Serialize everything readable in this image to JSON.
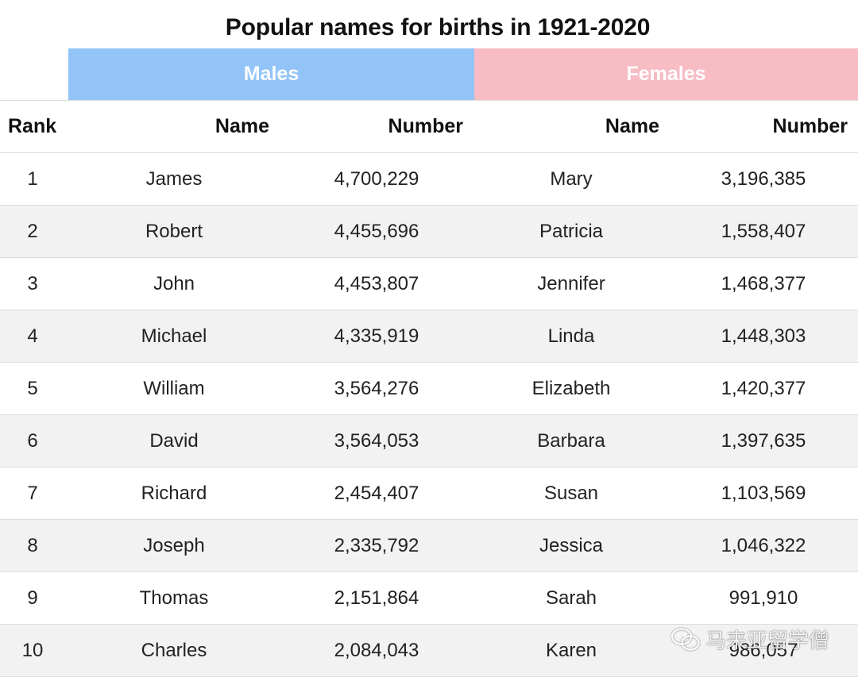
{
  "title": "Popular names for births in 1921-2020",
  "groups": {
    "males": "Males",
    "females": "Females",
    "males_color": "#93c4f7",
    "females_color": "#f7bcc4"
  },
  "headers": {
    "rank": "Rank",
    "male_name": "Name",
    "male_number": "Number",
    "female_name": "Name",
    "female_number": "Number"
  },
  "rows": [
    {
      "rank": "1",
      "male_name": "James",
      "male_number": "4,700,229",
      "female_name": "Mary",
      "female_number": "3,196,385"
    },
    {
      "rank": "2",
      "male_name": "Robert",
      "male_number": "4,455,696",
      "female_name": "Patricia",
      "female_number": "1,558,407"
    },
    {
      "rank": "3",
      "male_name": "John",
      "male_number": "4,453,807",
      "female_name": "Jennifer",
      "female_number": "1,468,377"
    },
    {
      "rank": "4",
      "male_name": "Michael",
      "male_number": "4,335,919",
      "female_name": "Linda",
      "female_number": "1,448,303"
    },
    {
      "rank": "5",
      "male_name": "William",
      "male_number": "3,564,276",
      "female_name": "Elizabeth",
      "female_number": "1,420,377"
    },
    {
      "rank": "6",
      "male_name": "David",
      "male_number": "3,564,053",
      "female_name": "Barbara",
      "female_number": "1,397,635"
    },
    {
      "rank": "7",
      "male_name": "Richard",
      "male_number": "2,454,407",
      "female_name": "Susan",
      "female_number": "1,103,569"
    },
    {
      "rank": "8",
      "male_name": "Joseph",
      "male_number": "2,335,792",
      "female_name": "Jessica",
      "female_number": "1,046,322"
    },
    {
      "rank": "9",
      "male_name": "Thomas",
      "male_number": "2,151,864",
      "female_name": "Sarah",
      "female_number": "991,910"
    },
    {
      "rank": "10",
      "male_name": "Charles",
      "male_number": "2,084,043",
      "female_name": "Karen",
      "female_number": "986,057"
    }
  ],
  "watermark": {
    "icon": "wechat-icon",
    "text": "马来亚留学僧"
  }
}
